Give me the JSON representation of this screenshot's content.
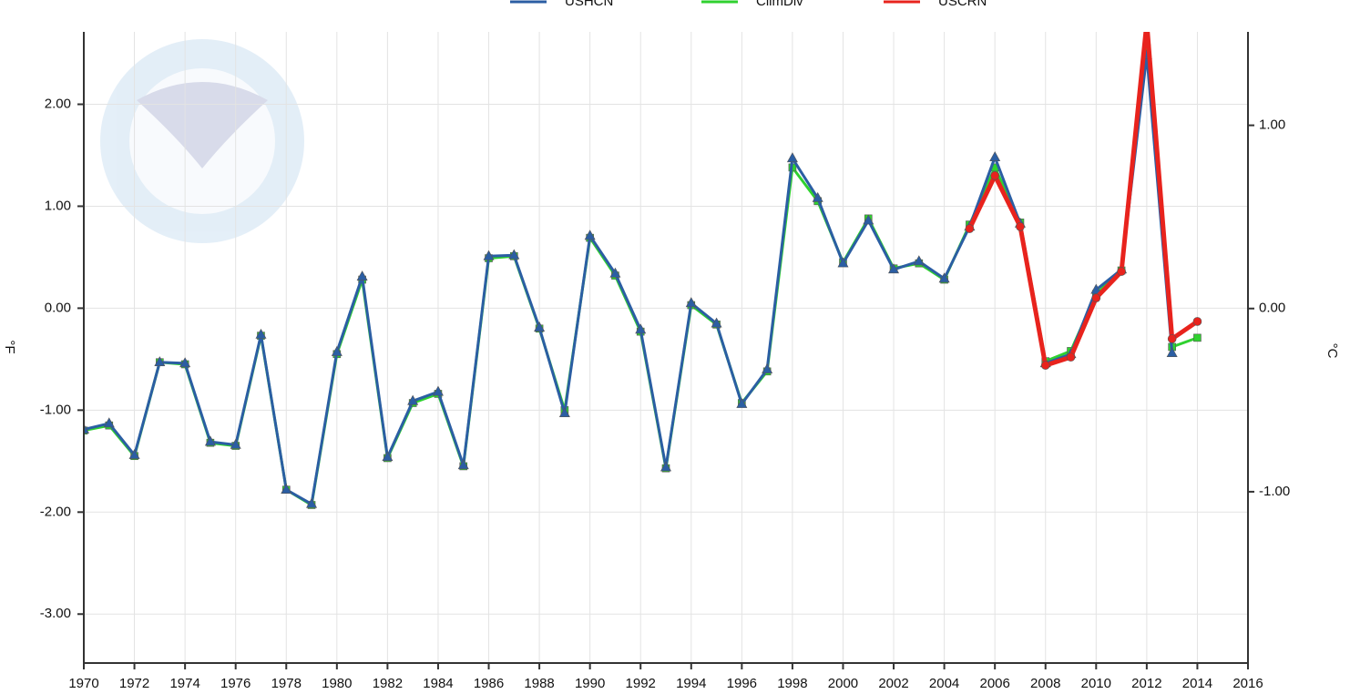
{
  "chart_data": {
    "type": "line",
    "x": [
      1970,
      1971,
      1972,
      1973,
      1974,
      1975,
      1976,
      1977,
      1978,
      1979,
      1980,
      1981,
      1982,
      1983,
      1984,
      1985,
      1986,
      1987,
      1988,
      1989,
      1990,
      1991,
      1992,
      1993,
      1994,
      1995,
      1996,
      1997,
      1998,
      1999,
      2000,
      2001,
      2002,
      2003,
      2004,
      2005,
      2006,
      2007,
      2008,
      2009,
      2010,
      2011,
      2012,
      2013,
      2014
    ],
    "series": [
      {
        "name": "USHCN",
        "color": "#2b5ea3",
        "marker": "triangle",
        "values": [
          -1.19,
          -1.13,
          -1.44,
          -0.53,
          -0.54,
          -1.31,
          -1.34,
          -0.26,
          -1.78,
          -1.92,
          -0.43,
          0.31,
          -1.46,
          -0.91,
          -0.82,
          -1.54,
          0.51,
          0.52,
          -0.19,
          -1.03,
          0.71,
          0.34,
          -0.21,
          -1.56,
          0.05,
          -0.15,
          -0.94,
          -0.6,
          1.47,
          1.08,
          0.44,
          0.86,
          0.38,
          0.46,
          0.29,
          0.8,
          1.48,
          0.83,
          -0.54,
          -0.45,
          0.18,
          0.38,
          2.48,
          -0.44,
          null
        ]
      },
      {
        "name": "ClimDiv",
        "color": "#2fd12f",
        "marker": "square",
        "values": [
          -1.2,
          -1.15,
          -1.45,
          -0.53,
          -0.55,
          -1.32,
          -1.35,
          -0.27,
          -1.78,
          -1.93,
          -0.45,
          0.28,
          -1.47,
          -0.93,
          -0.84,
          -1.55,
          0.49,
          0.51,
          -0.2,
          -1.0,
          0.69,
          0.32,
          -0.23,
          -1.57,
          0.03,
          -0.16,
          -0.93,
          -0.62,
          1.38,
          1.05,
          0.45,
          0.88,
          0.39,
          0.44,
          0.28,
          0.82,
          1.38,
          0.84,
          -0.52,
          -0.42,
          0.14,
          0.37,
          2.55,
          -0.38,
          -0.29
        ]
      },
      {
        "name": "USCRN",
        "color": "#e8231d",
        "marker": "circle",
        "values": [
          null,
          null,
          null,
          null,
          null,
          null,
          null,
          null,
          null,
          null,
          null,
          null,
          null,
          null,
          null,
          null,
          null,
          null,
          null,
          null,
          null,
          null,
          null,
          null,
          null,
          null,
          null,
          null,
          null,
          null,
          null,
          null,
          null,
          null,
          null,
          0.78,
          1.3,
          0.8,
          -0.56,
          -0.48,
          0.1,
          0.36,
          2.8,
          -0.3,
          -0.13
        ]
      }
    ],
    "y_label": "°F",
    "y2_label": "°C",
    "xlim": [
      1970,
      2016
    ],
    "xticks": [
      1970,
      1972,
      1974,
      1976,
      1978,
      1980,
      1982,
      1984,
      1986,
      1988,
      1990,
      1992,
      1994,
      1996,
      1998,
      2000,
      2002,
      2004,
      2006,
      2008,
      2010,
      2012,
      2014,
      2016
    ],
    "ylim": [
      -3.48,
      2.71
    ],
    "yticks": [
      {
        "value": -3,
        "label": "-3.00"
      },
      {
        "value": -2,
        "label": "-2.00"
      },
      {
        "value": -1,
        "label": "-1.00"
      },
      {
        "value": 0,
        "label": "0.00"
      },
      {
        "value": 1,
        "label": "1.00"
      },
      {
        "value": 2,
        "label": "2.00"
      }
    ],
    "y2lim": [
      -1.935,
      1.51
    ],
    "y2ticks": [
      {
        "value": -1,
        "label": "-1.00"
      },
      {
        "value": 0,
        "label": "0.00"
      },
      {
        "value": 1,
        "label": "1.00"
      }
    ],
    "grid": true
  }
}
